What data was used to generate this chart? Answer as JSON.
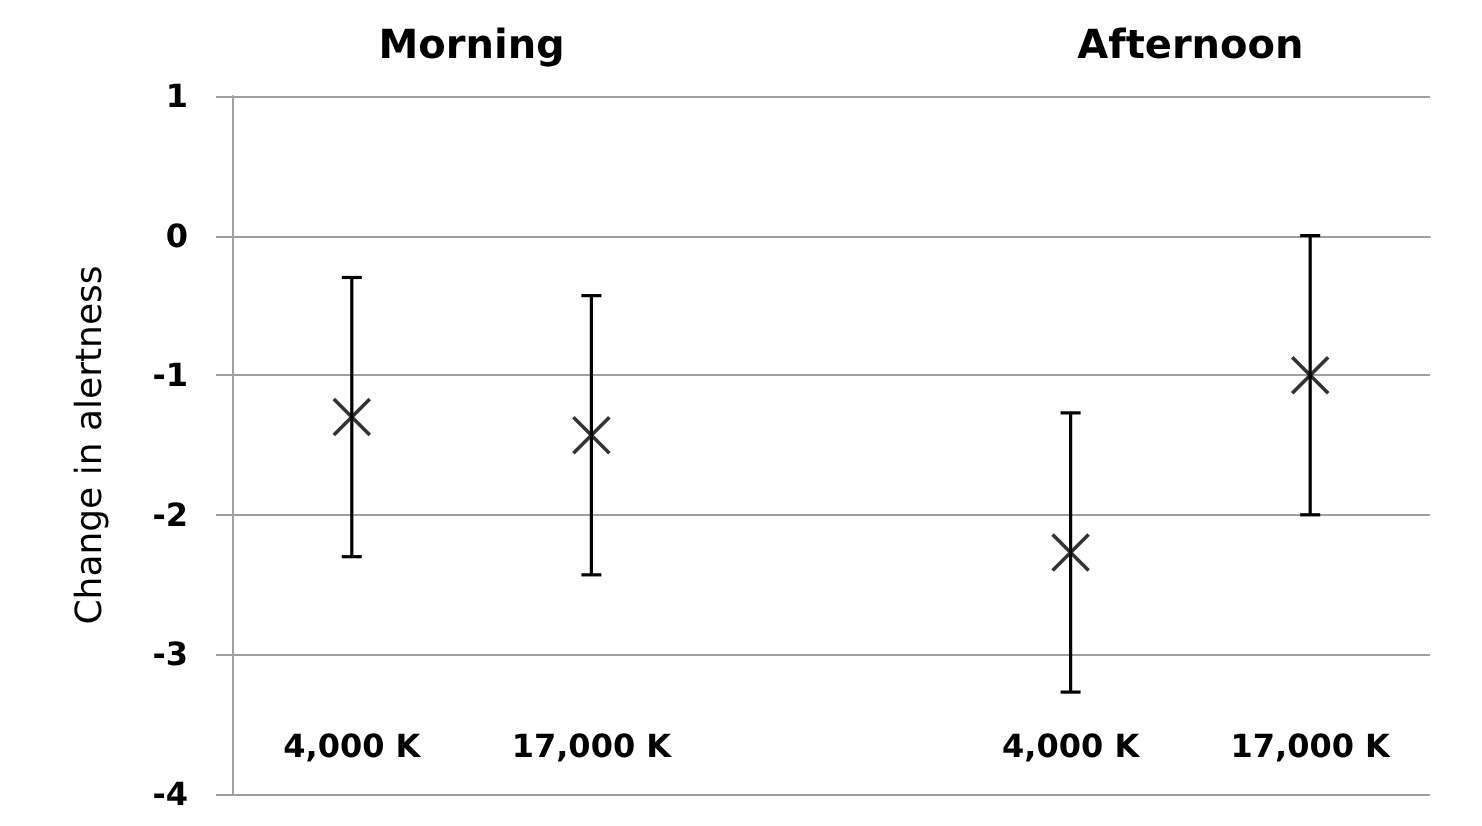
{
  "chart_data": {
    "type": "scatter",
    "ylabel": "Change in alertness",
    "categories": [
      "4,000 K",
      "17,000 K",
      null,
      "4,000 K",
      "17,000 K"
    ],
    "values": [
      -1.3,
      -1.43,
      null,
      -2.27,
      -1.0
    ],
    "errors": [
      1.0,
      1.0,
      null,
      1.0,
      1.0
    ],
    "color": "#000000",
    "marker": "cross",
    "ylim": [
      -4,
      1
    ],
    "yticks": [
      -4,
      -3,
      -2,
      -1,
      0,
      1
    ],
    "grid": "y",
    "annotations": [
      "Morning",
      "Afternoon"
    ]
  }
}
